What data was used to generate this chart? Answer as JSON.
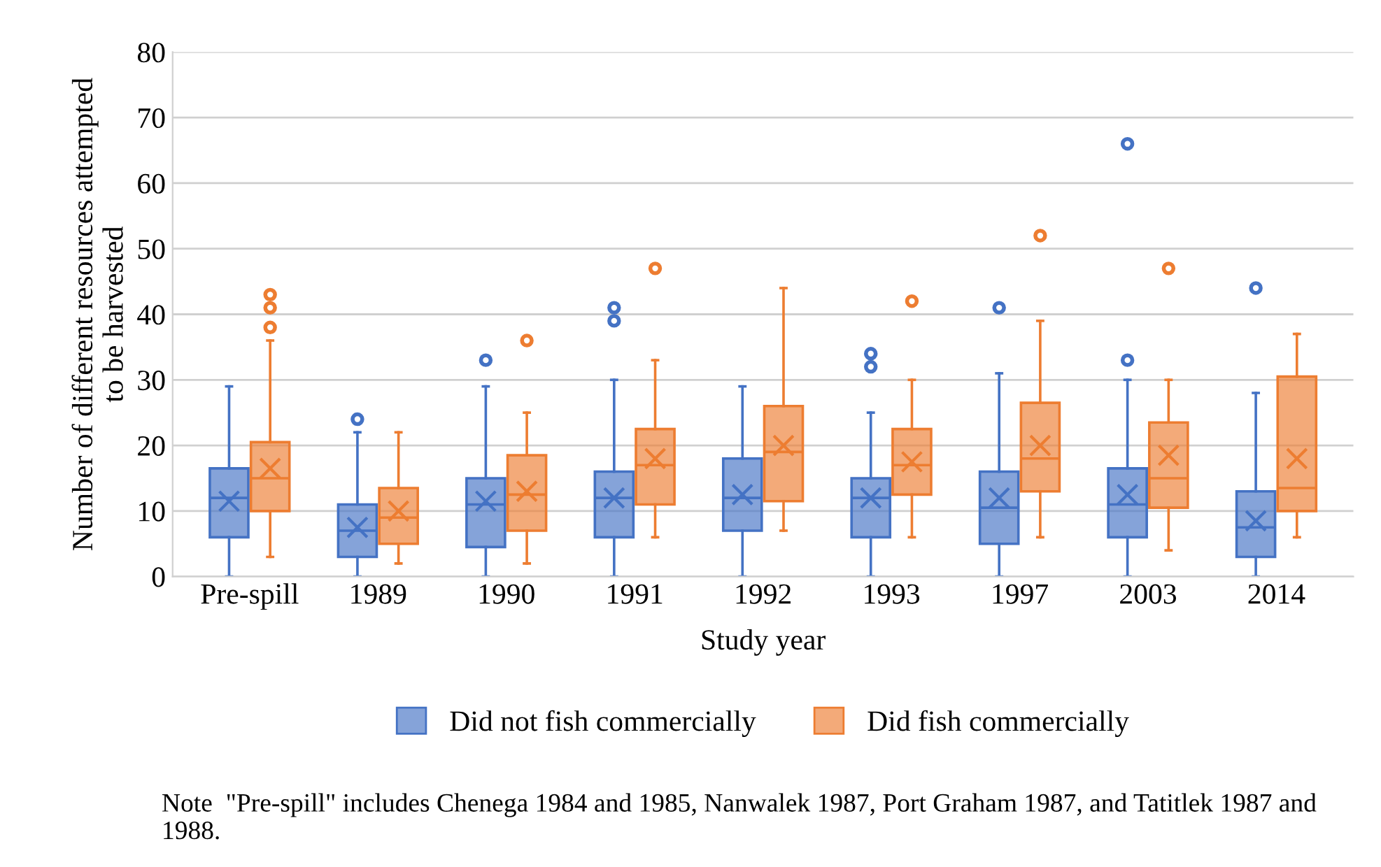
{
  "chart_data": {
    "type": "box",
    "xlabel": "Study year",
    "ylabel": "Number of different resources attempted\nto be harvested",
    "categories": [
      "Pre-spill",
      "1989",
      "1990",
      "1991",
      "1992",
      "1993",
      "1997",
      "2003",
      "2014"
    ],
    "ylim": [
      0,
      80
    ],
    "yticks": [
      0,
      10,
      20,
      30,
      40,
      50,
      60,
      70,
      80
    ],
    "grid": "y",
    "legend": "bottom",
    "series": [
      {
        "name": "Did not fish commercially",
        "color": "#4472c4",
        "boxes": [
          {
            "low": 0,
            "q1": 6,
            "median": 12,
            "q3": 16.5,
            "high": 29,
            "mean": 11.5
          },
          {
            "low": 0,
            "q1": 3,
            "median": 7,
            "q3": 11,
            "high": 22,
            "mean": 7.5,
            "outliers": [
              24
            ]
          },
          {
            "low": 0,
            "q1": 4.5,
            "median": 11,
            "q3": 15,
            "high": 29,
            "mean": 11.5,
            "outliers": [
              33
            ]
          },
          {
            "low": 0,
            "q1": 6,
            "median": 12,
            "q3": 16,
            "high": 30,
            "mean": 12,
            "outliers": [
              39,
              41
            ]
          },
          {
            "low": 0,
            "q1": 7,
            "median": 12,
            "q3": 18,
            "high": 29,
            "mean": 12.5
          },
          {
            "low": 0,
            "q1": 6,
            "median": 12,
            "q3": 15,
            "high": 25,
            "mean": 12,
            "outliers": [
              32,
              34
            ]
          },
          {
            "low": 0,
            "q1": 5,
            "median": 10.5,
            "q3": 16,
            "high": 31,
            "mean": 12,
            "outliers": [
              41
            ]
          },
          {
            "low": 0,
            "q1": 6,
            "median": 11,
            "q3": 16.5,
            "high": 30,
            "mean": 12.5,
            "outliers": [
              33,
              66
            ]
          },
          {
            "low": 0,
            "q1": 3,
            "median": 7.5,
            "q3": 13,
            "high": 28,
            "mean": 8.5,
            "outliers": [
              44
            ]
          }
        ]
      },
      {
        "name": "Did fish commercially",
        "color": "#ed7d31",
        "boxes": [
          {
            "low": 3,
            "q1": 10,
            "median": 15,
            "q3": 20.5,
            "high": 36,
            "mean": 16.5,
            "outliers": [
              38,
              41,
              43
            ]
          },
          {
            "low": 2,
            "q1": 5,
            "median": 9,
            "q3": 13.5,
            "high": 22,
            "mean": 10
          },
          {
            "low": 2,
            "q1": 7,
            "median": 12.5,
            "q3": 18.5,
            "high": 25,
            "mean": 13,
            "outliers": [
              36
            ]
          },
          {
            "low": 6,
            "q1": 11,
            "median": 17,
            "q3": 22.5,
            "high": 33,
            "mean": 18,
            "outliers": [
              47
            ]
          },
          {
            "low": 7,
            "q1": 11.5,
            "median": 19,
            "q3": 26,
            "high": 44,
            "mean": 20
          },
          {
            "low": 6,
            "q1": 12.5,
            "median": 17,
            "q3": 22.5,
            "high": 30,
            "mean": 17.5,
            "outliers": [
              42
            ]
          },
          {
            "low": 6,
            "q1": 13,
            "median": 18,
            "q3": 26.5,
            "high": 39,
            "mean": 20,
            "outliers": [
              52
            ]
          },
          {
            "low": 4,
            "q1": 10.5,
            "median": 15,
            "q3": 23.5,
            "high": 30,
            "mean": 18.5,
            "outliers": [
              47
            ]
          },
          {
            "low": 6,
            "q1": 10,
            "median": 13.5,
            "q3": 30.5,
            "high": 37,
            "mean": 18
          }
        ]
      }
    ],
    "annotations": [
      "Note  \"Pre-spill\" includes Chenega 1984 and 1985, Nanwalek 1987, Port Graham 1987, and Tatitlek 1987 and 1988."
    ]
  }
}
